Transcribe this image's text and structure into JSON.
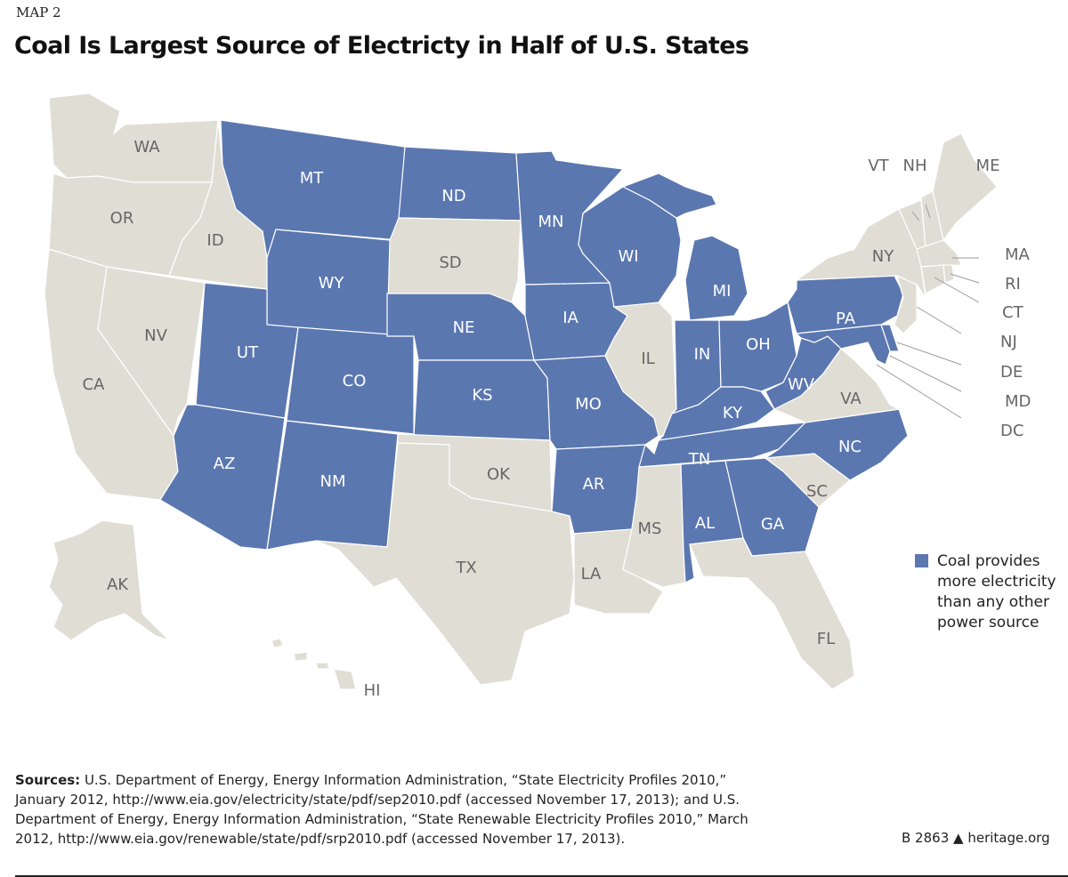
{
  "kicker": "MAP 2",
  "title": "Coal Is Largest Source of Electricty in Half of U.S. States",
  "colors": {
    "coal": "#5b77b0",
    "other": "#e0ddd5",
    "border": "#ffffff"
  },
  "states": [
    {
      "abbr": "WA",
      "coal": false
    },
    {
      "abbr": "OR",
      "coal": false
    },
    {
      "abbr": "CA",
      "coal": false
    },
    {
      "abbr": "NV",
      "coal": false
    },
    {
      "abbr": "ID",
      "coal": false
    },
    {
      "abbr": "MT",
      "coal": true
    },
    {
      "abbr": "WY",
      "coal": true
    },
    {
      "abbr": "UT",
      "coal": true
    },
    {
      "abbr": "AZ",
      "coal": true
    },
    {
      "abbr": "CO",
      "coal": true
    },
    {
      "abbr": "NM",
      "coal": true
    },
    {
      "abbr": "ND",
      "coal": true
    },
    {
      "abbr": "SD",
      "coal": false
    },
    {
      "abbr": "NE",
      "coal": true
    },
    {
      "abbr": "KS",
      "coal": true
    },
    {
      "abbr": "OK",
      "coal": false
    },
    {
      "abbr": "TX",
      "coal": false
    },
    {
      "abbr": "MN",
      "coal": true
    },
    {
      "abbr": "IA",
      "coal": true
    },
    {
      "abbr": "MO",
      "coal": true
    },
    {
      "abbr": "AR",
      "coal": true
    },
    {
      "abbr": "LA",
      "coal": false
    },
    {
      "abbr": "WI",
      "coal": true
    },
    {
      "abbr": "IL",
      "coal": false
    },
    {
      "abbr": "MI",
      "coal": true
    },
    {
      "abbr": "IN",
      "coal": true
    },
    {
      "abbr": "OH",
      "coal": true
    },
    {
      "abbr": "KY",
      "coal": true
    },
    {
      "abbr": "TN",
      "coal": true
    },
    {
      "abbr": "MS",
      "coal": false
    },
    {
      "abbr": "AL",
      "coal": true
    },
    {
      "abbr": "GA",
      "coal": true
    },
    {
      "abbr": "FL",
      "coal": false
    },
    {
      "abbr": "SC",
      "coal": false
    },
    {
      "abbr": "NC",
      "coal": true
    },
    {
      "abbr": "VA",
      "coal": false
    },
    {
      "abbr": "WV",
      "coal": true
    },
    {
      "abbr": "PA",
      "coal": true
    },
    {
      "abbr": "MD",
      "coal": true
    },
    {
      "abbr": "DE",
      "coal": true
    },
    {
      "abbr": "NJ",
      "coal": false
    },
    {
      "abbr": "NY",
      "coal": false
    },
    {
      "abbr": "VT",
      "coal": false
    },
    {
      "abbr": "NH",
      "coal": false
    },
    {
      "abbr": "ME",
      "coal": false
    },
    {
      "abbr": "MA",
      "coal": false
    },
    {
      "abbr": "CT",
      "coal": false
    },
    {
      "abbr": "RI",
      "coal": false
    },
    {
      "abbr": "DC",
      "coal": false
    },
    {
      "abbr": "AK",
      "coal": false
    },
    {
      "abbr": "HI",
      "coal": false
    }
  ],
  "legend": {
    "label": "Coal provides more electricity than any other power source"
  },
  "sources": {
    "label": "Sources:",
    "text": " U.S. Department of Energy, Energy Information Administration, “State Electricity Profiles 2010,” January 2012, http://www.eia.gov/electricity/state/pdf/sep2010.pdf (accessed November 17, 2013); and U.S. Department of Energy, Energy Information Administration, “State Renewable Electricity Profiles 2010,” March 2012, http://www.eia.gov/renewable/state/pdf/srp2010.pdf (accessed November 17, 2013)."
  },
  "credit": {
    "code": "B 2863",
    "site": "heritage.org"
  }
}
